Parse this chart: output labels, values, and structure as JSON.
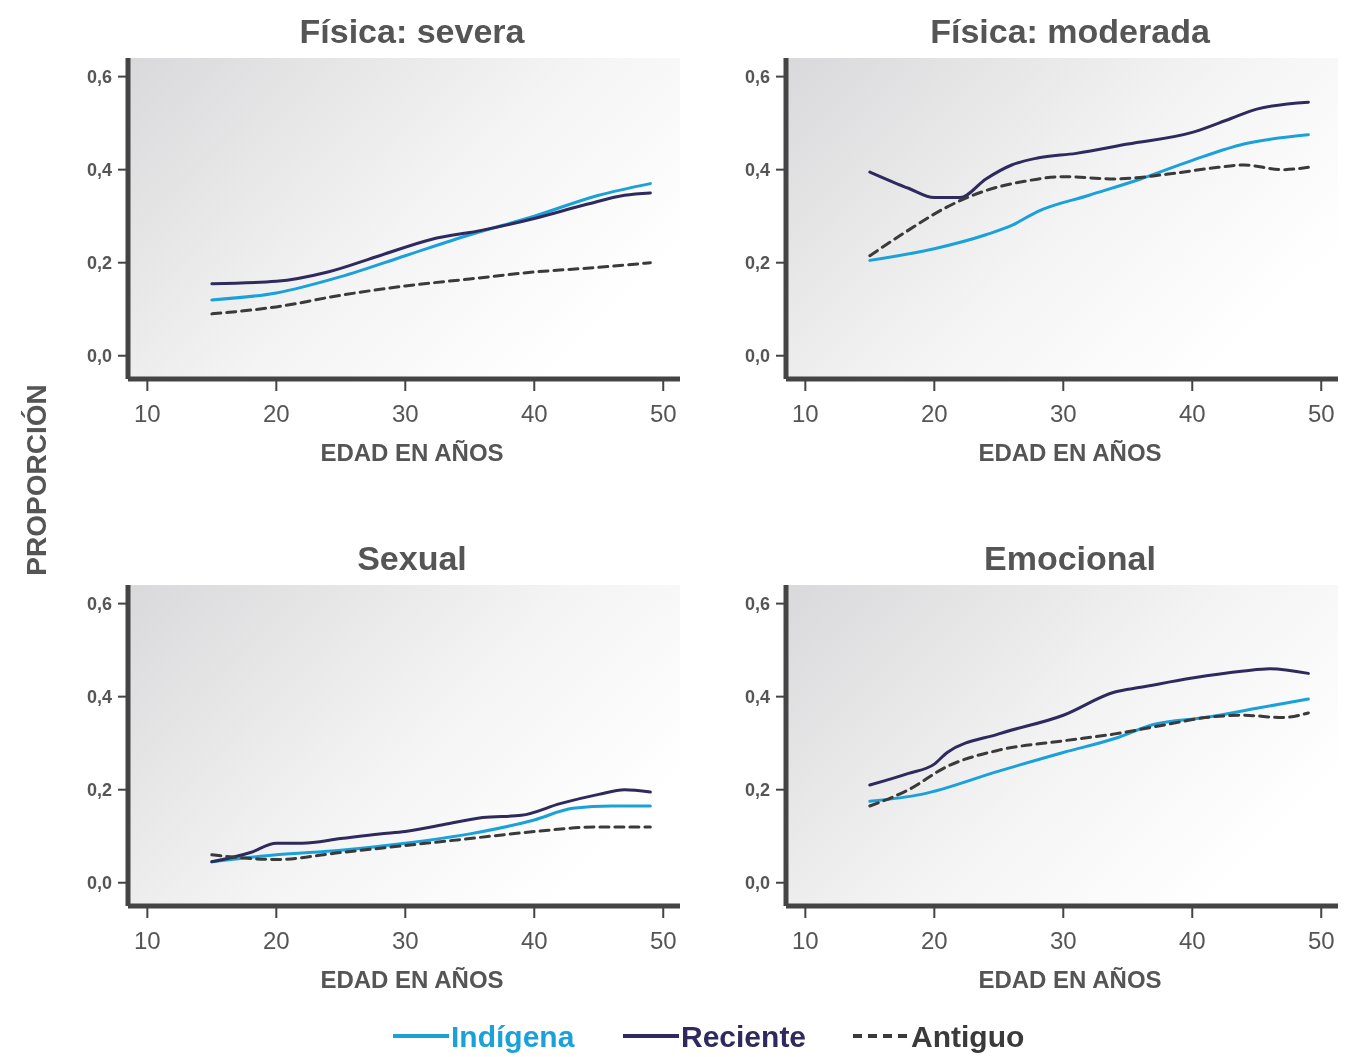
{
  "chart_data": [
    {
      "type": "line",
      "title": "Física: severa",
      "xlabel": "EDAD EN AÑOS",
      "ylabel": "PROPORCIÓN",
      "xlim": [
        8.5,
        51.3
      ],
      "ylim": [
        -0.05,
        0.64
      ],
      "xticks": [
        10,
        20,
        30,
        40,
        50
      ],
      "yticks": [
        {
          "value": 0,
          "label": "0,0"
        },
        {
          "value": 0.2,
          "label": "0,2"
        },
        {
          "value": 0.4,
          "label": "0,4"
        },
        {
          "value": 0.6,
          "label": "0,6"
        }
      ],
      "grid": false,
      "legend": "bottom",
      "series": [
        {
          "name": "Indígena",
          "color": "#1ba1d9",
          "x": [
            15,
            20,
            25,
            30,
            35,
            40,
            45,
            49
          ],
          "values": [
            0.12,
            0.135,
            0.17,
            0.215,
            0.26,
            0.3,
            0.345,
            0.37
          ]
        },
        {
          "name": "Reciente",
          "color": "#2e2a5e",
          "x": [
            15,
            20,
            24,
            28,
            32,
            36,
            40,
            44,
            47,
            49
          ],
          "values": [
            0.155,
            0.16,
            0.18,
            0.215,
            0.25,
            0.27,
            0.295,
            0.325,
            0.345,
            0.35
          ]
        },
        {
          "name": "Antiguo",
          "color": "#3a3a3a",
          "line_style": "dashed",
          "x": [
            15,
            20,
            25,
            30,
            35,
            40,
            45,
            49
          ],
          "values": [
            0.09,
            0.105,
            0.13,
            0.15,
            0.165,
            0.18,
            0.19,
            0.2
          ]
        }
      ]
    },
    {
      "type": "line",
      "title": "Física: moderada",
      "xlabel": "EDAD EN AÑOS",
      "xlim": [
        8.5,
        51.3
      ],
      "ylim": [
        -0.05,
        0.64
      ],
      "xticks": [
        10,
        20,
        30,
        40,
        50
      ],
      "yticks": [
        {
          "value": 0,
          "label": "0,0"
        },
        {
          "value": 0.2,
          "label": "0,2"
        },
        {
          "value": 0.4,
          "label": "0,4"
        },
        {
          "value": 0.6,
          "label": "0,6"
        }
      ],
      "grid": false,
      "series": [
        {
          "color": "#1ba1d9",
          "x": [
            15,
            20,
            24,
            26,
            28,
            32,
            36,
            40,
            44,
            49
          ],
          "values": [
            0.205,
            0.23,
            0.26,
            0.28,
            0.31,
            0.345,
            0.38,
            0.42,
            0.455,
            0.475
          ]
        },
        {
          "color": "#2e2a5e",
          "x": [
            15,
            18,
            20,
            22,
            24,
            26,
            28,
            31,
            35,
            40,
            43,
            45,
            49
          ],
          "values": [
            0.395,
            0.36,
            0.34,
            0.34,
            0.38,
            0.41,
            0.425,
            0.435,
            0.455,
            0.48,
            0.51,
            0.53,
            0.545
          ]
        },
        {
          "color": "#3a3a3a",
          "line_style": "dashed",
          "x": [
            15,
            18,
            21,
            24,
            27,
            30,
            34,
            38,
            42,
            44,
            47,
            49
          ],
          "values": [
            0.215,
            0.27,
            0.32,
            0.355,
            0.375,
            0.385,
            0.38,
            0.39,
            0.405,
            0.41,
            0.4,
            0.405
          ]
        }
      ]
    },
    {
      "type": "line",
      "title": "Sexual",
      "xlabel": "EDAD EN AÑOS",
      "xlim": [
        8.5,
        51.3
      ],
      "ylim": [
        -0.05,
        0.64
      ],
      "xticks": [
        10,
        20,
        30,
        40,
        50
      ],
      "yticks": [
        {
          "value": 0,
          "label": "0,0"
        },
        {
          "value": 0.2,
          "label": "0,2"
        },
        {
          "value": 0.4,
          "label": "0,4"
        },
        {
          "value": 0.6,
          "label": "0,6"
        }
      ],
      "grid": false,
      "series": [
        {
          "color": "#1ba1d9",
          "x": [
            15,
            20,
            25,
            30,
            35,
            40,
            43,
            46,
            49
          ],
          "values": [
            0.045,
            0.06,
            0.07,
            0.085,
            0.105,
            0.135,
            0.16,
            0.165,
            0.165
          ]
        },
        {
          "color": "#2e2a5e",
          "x": [
            15,
            18,
            20,
            22,
            25,
            28,
            30,
            33,
            36,
            39,
            42,
            45,
            47,
            49
          ],
          "values": [
            0.045,
            0.065,
            0.085,
            0.085,
            0.095,
            0.105,
            0.11,
            0.125,
            0.14,
            0.145,
            0.17,
            0.19,
            0.2,
            0.195
          ]
        },
        {
          "color": "#3a3a3a",
          "line_style": "dashed",
          "x": [
            15,
            20,
            25,
            30,
            35,
            40,
            45,
            49
          ],
          "values": [
            0.06,
            0.05,
            0.065,
            0.08,
            0.095,
            0.11,
            0.12,
            0.12
          ]
        }
      ]
    },
    {
      "type": "line",
      "title": "Emocional",
      "xlabel": "EDAD EN AÑOS",
      "xlim": [
        8.5,
        51.3
      ],
      "ylim": [
        -0.05,
        0.64
      ],
      "xticks": [
        10,
        20,
        30,
        40,
        50
      ],
      "yticks": [
        {
          "value": 0,
          "label": "0,0"
        },
        {
          "value": 0.2,
          "label": "0,2"
        },
        {
          "value": 0.4,
          "label": "0,4"
        },
        {
          "value": 0.6,
          "label": "0,6"
        }
      ],
      "grid": false,
      "series": [
        {
          "color": "#1ba1d9",
          "x": [
            15,
            19,
            25,
            30,
            34,
            37,
            41,
            45,
            49
          ],
          "values": [
            0.175,
            0.19,
            0.24,
            0.28,
            0.31,
            0.34,
            0.355,
            0.375,
            0.395
          ]
        },
        {
          "color": "#2e2a5e",
          "x": [
            15,
            18,
            20,
            21,
            25,
            30,
            34,
            36,
            40,
            44,
            46,
            49
          ],
          "values": [
            0.21,
            0.235,
            0.255,
            0.28,
            0.32,
            0.36,
            0.41,
            0.42,
            0.44,
            0.455,
            0.46,
            0.45
          ]
        },
        {
          "color": "#3a3a3a",
          "line_style": "dashed",
          "x": [
            15,
            18,
            21,
            25,
            30,
            34,
            38,
            41,
            44,
            47,
            49
          ],
          "values": [
            0.165,
            0.2,
            0.25,
            0.285,
            0.305,
            0.32,
            0.34,
            0.355,
            0.36,
            0.355,
            0.365
          ]
        }
      ]
    }
  ]
}
